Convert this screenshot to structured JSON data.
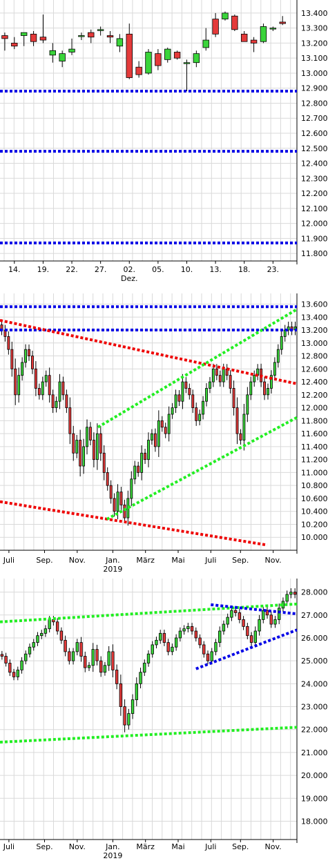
{
  "colors": {
    "up": "#3ad43a",
    "down": "#e43a3a",
    "grid": "#d9d9d9",
    "blue_line": "#0000e6",
    "red_line": "#ee0000",
    "green_line": "#22ee22",
    "wick": "#000000"
  },
  "chart_data": [
    {
      "type": "candlestick",
      "ylim": [
        11.75,
        13.45
      ],
      "yticks": [
        "13.400",
        "13.300",
        "13.200",
        "13.100",
        "13.000",
        "12.900",
        "12.800",
        "12.700",
        "12.600",
        "12.500",
        "12.400",
        "12.300",
        "12.200",
        "12.100",
        "12.000",
        "11.900",
        "11.800"
      ],
      "ytick_values": [
        13.4,
        13.3,
        13.2,
        13.1,
        13.0,
        12.9,
        12.8,
        12.7,
        12.6,
        12.5,
        12.4,
        12.3,
        12.2,
        12.1,
        12.0,
        11.9,
        11.8
      ],
      "x_range": [
        0,
        31
      ],
      "xticks": [
        {
          "label": "14.",
          "x": 1
        },
        {
          "label": "19.",
          "x": 4
        },
        {
          "label": "22.",
          "x": 7
        },
        {
          "label": "27.",
          "x": 10
        },
        {
          "label": "02.",
          "x": 13,
          "sub": "Dez."
        },
        {
          "label": "05.",
          "x": 16
        },
        {
          "label": "10.",
          "x": 19
        },
        {
          "label": "13.",
          "x": 22
        },
        {
          "label": "18.",
          "x": 25
        },
        {
          "label": "23.",
          "x": 28
        }
      ],
      "candles": [
        {
          "x": 0,
          "o": 13.25,
          "h": 13.27,
          "l": 13.15,
          "c": 13.23
        },
        {
          "x": 1,
          "o": 13.2,
          "h": 13.24,
          "l": 13.16,
          "c": 13.18
        },
        {
          "x": 2,
          "o": 13.25,
          "h": 13.27,
          "l": 13.18,
          "c": 13.27
        },
        {
          "x": 3,
          "o": 13.26,
          "h": 13.28,
          "l": 13.18,
          "c": 13.21
        },
        {
          "x": 4,
          "o": 13.24,
          "h": 13.39,
          "l": 13.2,
          "c": 13.22
        },
        {
          "x": 5,
          "o": 13.12,
          "h": 13.2,
          "l": 13.07,
          "c": 13.15
        },
        {
          "x": 6,
          "o": 13.08,
          "h": 13.15,
          "l": 13.04,
          "c": 13.13
        },
        {
          "x": 7,
          "o": 13.14,
          "h": 13.23,
          "l": 13.12,
          "c": 13.16
        },
        {
          "x": 8,
          "o": 13.25,
          "h": 13.27,
          "l": 13.22,
          "c": 13.25
        },
        {
          "x": 9,
          "o": 13.27,
          "h": 13.29,
          "l": 13.2,
          "c": 13.24
        },
        {
          "x": 10,
          "o": 13.29,
          "h": 13.31,
          "l": 13.25,
          "c": 13.29
        },
        {
          "x": 11,
          "o": 13.25,
          "h": 13.28,
          "l": 13.2,
          "c": 13.24
        },
        {
          "x": 12,
          "o": 13.18,
          "h": 13.26,
          "l": 13.14,
          "c": 13.23
        },
        {
          "x": 13,
          "o": 13.26,
          "h": 13.33,
          "l": 12.96,
          "c": 12.97
        },
        {
          "x": 14,
          "o": 13.04,
          "h": 13.08,
          "l": 12.97,
          "c": 12.99
        },
        {
          "x": 15,
          "o": 13.0,
          "h": 13.16,
          "l": 12.99,
          "c": 13.14
        },
        {
          "x": 16,
          "o": 13.13,
          "h": 13.16,
          "l": 13.02,
          "c": 13.05
        },
        {
          "x": 17,
          "o": 13.09,
          "h": 13.17,
          "l": 13.07,
          "c": 13.16
        },
        {
          "x": 18,
          "o": 13.14,
          "h": 13.15,
          "l": 13.09,
          "c": 13.1
        },
        {
          "x": 19,
          "o": 13.07,
          "h": 13.09,
          "l": 12.88,
          "c": 13.07
        },
        {
          "x": 20,
          "o": 13.07,
          "h": 13.15,
          "l": 13.04,
          "c": 13.13
        },
        {
          "x": 21,
          "o": 13.17,
          "h": 13.3,
          "l": 13.15,
          "c": 13.22
        },
        {
          "x": 22,
          "o": 13.36,
          "h": 13.4,
          "l": 13.24,
          "c": 13.26
        },
        {
          "x": 23,
          "o": 13.36,
          "h": 13.41,
          "l": 13.35,
          "c": 13.4
        },
        {
          "x": 24,
          "o": 13.38,
          "h": 13.39,
          "l": 13.28,
          "c": 13.29
        },
        {
          "x": 25,
          "o": 13.26,
          "h": 13.28,
          "l": 13.21,
          "c": 13.21
        },
        {
          "x": 26,
          "o": 13.22,
          "h": 13.24,
          "l": 13.14,
          "c": 13.2
        },
        {
          "x": 27,
          "o": 13.21,
          "h": 13.33,
          "l": 13.2,
          "c": 13.31
        },
        {
          "x": 28,
          "o": 13.3,
          "h": 13.31,
          "l": 13.28,
          "c": 13.3
        },
        {
          "x": 29,
          "o": 13.34,
          "h": 13.38,
          "l": 13.32,
          "c": 13.33
        }
      ],
      "lines": [
        {
          "color": "blue",
          "y": 12.88
        },
        {
          "color": "blue",
          "y": 12.48
        },
        {
          "color": "blue",
          "y": 11.87
        }
      ]
    },
    {
      "type": "candlestick",
      "ylim": [
        9.8,
        13.68
      ],
      "yticks": [
        "13.600",
        "13.400",
        "13.200",
        "13.000",
        "12.800",
        "12.600",
        "12.400",
        "12.200",
        "12.000",
        "11.800",
        "11.600",
        "11.400",
        "11.200",
        "11.000",
        "10.800",
        "10.600",
        "10.400",
        "10.200",
        "10.000"
      ],
      "ytick_values": [
        13.6,
        13.4,
        13.2,
        13.0,
        12.8,
        12.6,
        12.4,
        12.2,
        12.0,
        11.8,
        11.6,
        11.4,
        11.2,
        11.0,
        10.8,
        10.6,
        10.4,
        10.2,
        10.0
      ],
      "x_range": [
        0,
        100
      ],
      "xticks": [
        {
          "label": "Juli",
          "x": 3
        },
        {
          "label": "Sep.",
          "x": 15
        },
        {
          "label": "Nov.",
          "x": 26
        },
        {
          "label": "Jan.",
          "x": 38,
          "sub": "2019"
        },
        {
          "label": "März",
          "x": 49
        },
        {
          "label": "Mai",
          "x": 60
        },
        {
          "label": "Juli",
          "x": 71
        },
        {
          "label": "Sep.",
          "x": 81
        },
        {
          "label": "Nov.",
          "x": 92
        }
      ],
      "closes": [
        13.2,
        13.1,
        12.9,
        12.6,
        12.2,
        12.5,
        12.7,
        12.9,
        12.8,
        12.6,
        12.3,
        12.2,
        12.4,
        12.5,
        12.2,
        12.0,
        12.1,
        12.4,
        12.2,
        12.0,
        11.6,
        11.3,
        11.5,
        11.1,
        11.4,
        11.7,
        11.5,
        11.2,
        11.6,
        11.3,
        11.0,
        10.8,
        10.6,
        10.4,
        10.7,
        10.5,
        10.3,
        10.6,
        10.9,
        11.1,
        11.0,
        11.3,
        11.2,
        11.5,
        11.6,
        11.4,
        11.8,
        11.7,
        11.6,
        11.9,
        12.0,
        12.2,
        12.1,
        12.4,
        12.3,
        12.2,
        12.0,
        11.8,
        11.9,
        12.1,
        12.3,
        12.4,
        12.6,
        12.5,
        12.4,
        12.6,
        12.5,
        12.3,
        12.0,
        11.6,
        11.5,
        11.9,
        12.2,
        12.4,
        12.5,
        12.6,
        12.4,
        12.2,
        12.3,
        12.5,
        12.7,
        12.9,
        13.1,
        13.2,
        13.25,
        13.2,
        13.25
      ],
      "lines": [
        {
          "color": "blue",
          "x0": 0,
          "y0": 13.56,
          "x1": 100,
          "y1": 13.56
        },
        {
          "color": "blue",
          "x0": 0,
          "y0": 13.2,
          "x1": 100,
          "y1": 13.2
        },
        {
          "color": "red",
          "x0": 0,
          "y0": 13.35,
          "x1": 100,
          "y1": 12.37
        },
        {
          "color": "red",
          "x0": 0,
          "y0": 10.55,
          "x1": 90,
          "y1": 9.88
        },
        {
          "color": "green",
          "x0": 33,
          "y0": 11.7,
          "x1": 100,
          "y1": 13.52
        },
        {
          "color": "green",
          "x0": 36,
          "y0": 10.28,
          "x1": 100,
          "y1": 11.85
        }
      ]
    },
    {
      "type": "candlestick",
      "ylim": [
        17.2,
        28.35
      ],
      "yticks": [
        "28.000",
        "27.000",
        "26.000",
        "25.000",
        "24.000",
        "23.000",
        "22.000",
        "21.000",
        "20.000",
        "19.000",
        "18.000"
      ],
      "ytick_values": [
        28,
        27,
        26,
        25,
        24,
        23,
        22,
        21,
        20,
        19,
        18
      ],
      "x_range": [
        0,
        100
      ],
      "xticks": [
        {
          "label": "Juli",
          "x": 3
        },
        {
          "label": "Sep.",
          "x": 15
        },
        {
          "label": "Nov.",
          "x": 26
        },
        {
          "label": "Jan.",
          "x": 38,
          "sub": "2019"
        },
        {
          "label": "März",
          "x": 49
        },
        {
          "label": "Mai",
          "x": 60
        },
        {
          "label": "Juli",
          "x": 71
        },
        {
          "label": "Sep.",
          "x": 81
        },
        {
          "label": "Nov.",
          "x": 92
        }
      ],
      "closes": [
        25.2,
        24.9,
        24.5,
        24.3,
        24.6,
        25.0,
        25.3,
        25.6,
        25.8,
        26.1,
        26.2,
        26.4,
        26.8,
        26.7,
        26.3,
        25.9,
        25.4,
        25.0,
        25.4,
        25.8,
        25.2,
        24.7,
        24.8,
        25.5,
        25.0,
        24.5,
        24.8,
        25.4,
        24.6,
        24.0,
        23.0,
        22.2,
        22.7,
        23.3,
        24.0,
        24.5,
        24.9,
        25.3,
        25.7,
        25.9,
        26.2,
        25.8,
        25.4,
        25.6,
        26.0,
        26.3,
        26.4,
        26.5,
        26.3,
        26.0,
        25.7,
        25.3,
        25.0,
        25.4,
        25.8,
        26.3,
        26.6,
        26.9,
        27.2,
        27.1,
        26.8,
        26.5,
        26.1,
        25.8,
        26.3,
        26.8,
        27.2,
        27.0,
        26.6,
        26.8,
        27.3,
        27.6,
        27.9,
        28.0,
        27.9
      ],
      "lines": [
        {
          "color": "green",
          "x0": 0,
          "y0": 26.7,
          "x1": 100,
          "y1": 27.48
        },
        {
          "color": "green",
          "x0": 0,
          "y0": 21.45,
          "x1": 100,
          "y1": 22.1
        },
        {
          "color": "blue",
          "x0": 71,
          "y0": 27.45,
          "x1": 100,
          "y1": 27.05
        },
        {
          "color": "blue",
          "x0": 66,
          "y0": 24.65,
          "x1": 100,
          "y1": 26.35
        }
      ]
    }
  ],
  "x_sublabels": [
    "Dez.",
    "2019",
    "2019"
  ]
}
